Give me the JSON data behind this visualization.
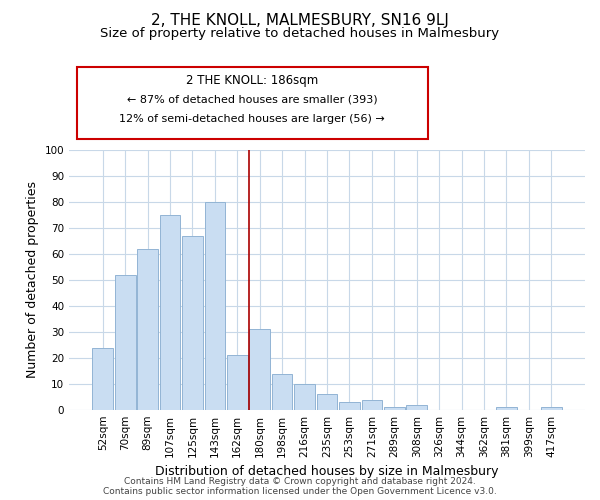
{
  "title": "2, THE KNOLL, MALMESBURY, SN16 9LJ",
  "subtitle": "Size of property relative to detached houses in Malmesbury",
  "xlabel": "Distribution of detached houses by size in Malmesbury",
  "ylabel": "Number of detached properties",
  "categories": [
    "52sqm",
    "70sqm",
    "89sqm",
    "107sqm",
    "125sqm",
    "143sqm",
    "162sqm",
    "180sqm",
    "198sqm",
    "216sqm",
    "235sqm",
    "253sqm",
    "271sqm",
    "289sqm",
    "308sqm",
    "326sqm",
    "344sqm",
    "362sqm",
    "381sqm",
    "399sqm",
    "417sqm"
  ],
  "values": [
    24,
    52,
    62,
    75,
    67,
    80,
    21,
    31,
    14,
    10,
    6,
    3,
    4,
    1,
    2,
    0,
    0,
    0,
    1,
    0,
    1
  ],
  "bar_color": "#c9ddf2",
  "bar_edge_color": "#92b4d4",
  "vline_index": 7,
  "vline_color": "#aa0000",
  "ylim": [
    0,
    100
  ],
  "yticks": [
    0,
    10,
    20,
    30,
    40,
    50,
    60,
    70,
    80,
    90,
    100
  ],
  "annotation_title": "2 THE KNOLL: 186sqm",
  "annotation_line1": "← 87% of detached houses are smaller (393)",
  "annotation_line2": "12% of semi-detached houses are larger (56) →",
  "annotation_box_color": "#ffffff",
  "annotation_box_edge_color": "#cc0000",
  "footer_line1": "Contains HM Land Registry data © Crown copyright and database right 2024.",
  "footer_line2": "Contains public sector information licensed under the Open Government Licence v3.0.",
  "background_color": "#ffffff",
  "grid_color": "#c8d8e8",
  "title_fontsize": 11,
  "subtitle_fontsize": 9.5,
  "axis_label_fontsize": 9,
  "tick_fontsize": 7.5,
  "footer_fontsize": 6.5,
  "ann_fontsize_title": 8.5,
  "ann_fontsize_body": 8
}
